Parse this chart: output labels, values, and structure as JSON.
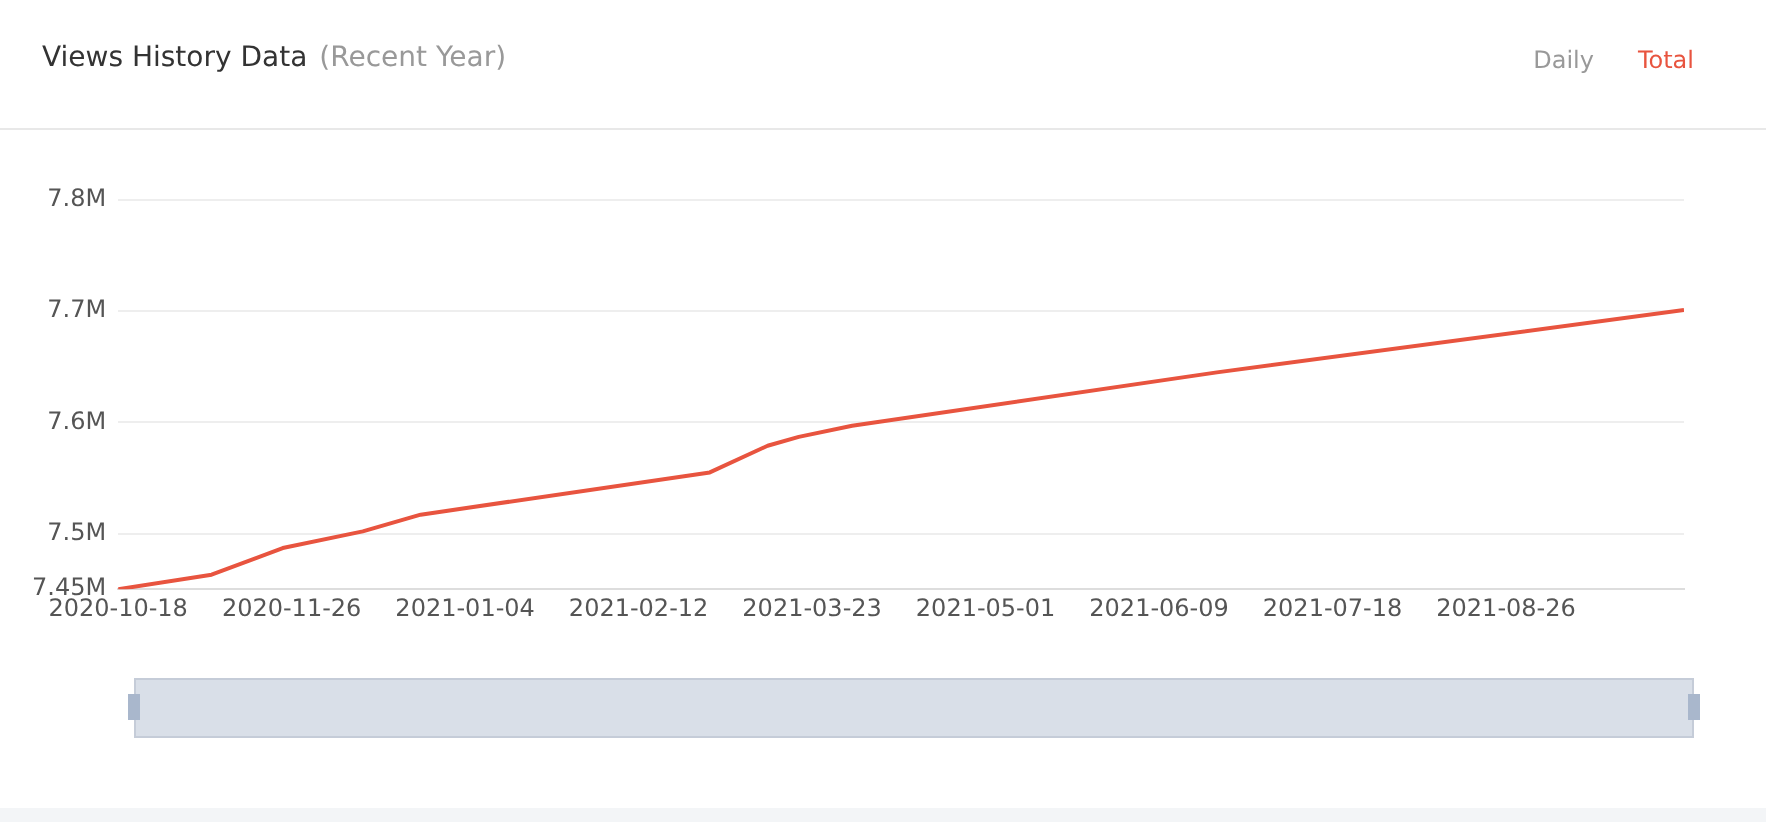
{
  "chart_data": {
    "type": "line",
    "title": "Views History Data",
    "subtitle": "(Recent Year)",
    "annotations": [
      "Daily",
      "Total"
    ],
    "x": [
      "2020-10-18",
      "2020-11-08",
      "2020-11-24",
      "2020-12-12",
      "2020-12-25",
      "2021-02-28",
      "2021-03-13",
      "2021-03-20",
      "2021-04-01",
      "2021-06-22",
      "2021-10-05"
    ],
    "series": [
      {
        "color": "#e8543f",
        "values": [
          7450000,
          7463000,
          7487000,
          7502000,
          7517000,
          7555000,
          7579000,
          7587000,
          7597000,
          7645000,
          7701000
        ]
      }
    ],
    "xlim": [
      "2020-10-18",
      "2021-10-05"
    ],
    "xticks": [
      "2020-10-18",
      "2020-11-26",
      "2021-01-04",
      "2021-02-12",
      "2021-03-23",
      "2021-05-01",
      "2021-06-09",
      "2021-07-18",
      "2021-08-26"
    ],
    "ylim": [
      7450000,
      7800000
    ],
    "yticks": [
      {
        "value": 7450000,
        "label": "7.45M"
      },
      {
        "value": 7500000,
        "label": "7.5M"
      },
      {
        "value": 7600000,
        "label": "7.6M"
      },
      {
        "value": 7700000,
        "label": "7.7M"
      },
      {
        "value": 7800000,
        "label": "7.8M"
      }
    ],
    "grid": "y",
    "legend": false,
    "marker": "none",
    "line_style": "solid"
  }
}
